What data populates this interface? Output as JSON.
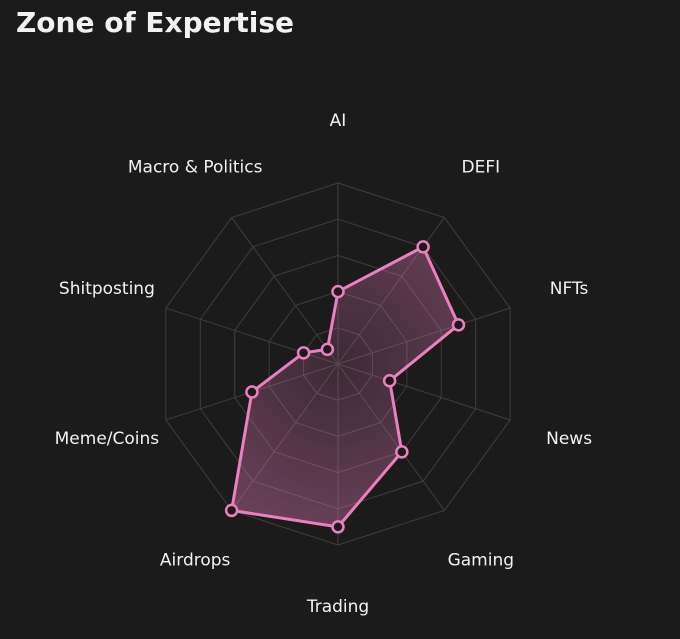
{
  "chart_data": {
    "type": "radar",
    "title": "Zone of Expertise",
    "categories": [
      "AI",
      "DEFI",
      "NFTs",
      "News",
      "Gaming",
      "Trading",
      "Airdrops",
      "Meme/Coins",
      "Shitposting",
      "Macro & Politics"
    ],
    "values": [
      2,
      4,
      3.5,
      1.5,
      3,
      4.5,
      5,
      2.5,
      1,
      0.5
    ],
    "color": "#ec7fbf",
    "rlim": [
      0,
      5
    ],
    "rticks": [
      1,
      2,
      3,
      4,
      5
    ],
    "grid": true
  }
}
